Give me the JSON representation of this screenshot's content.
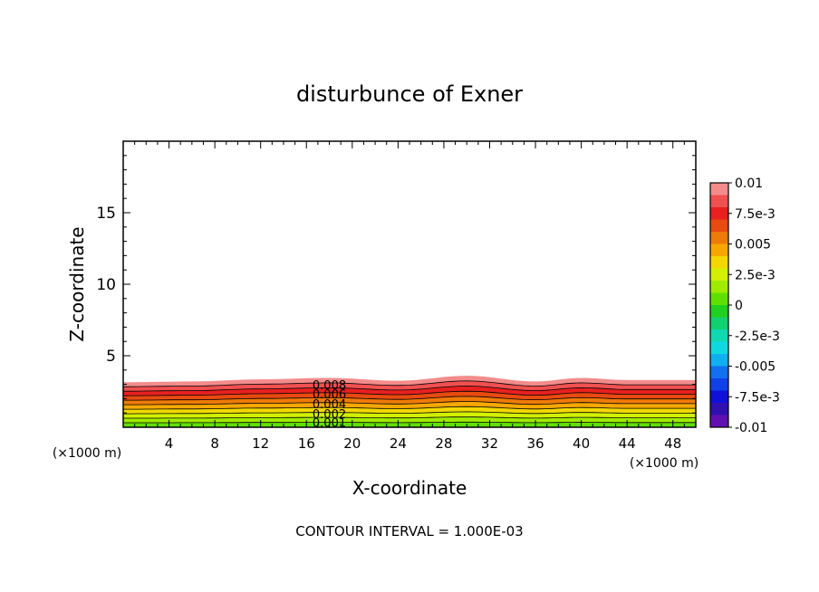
{
  "chart_data": {
    "type": "contour",
    "title": "disturbunce of Exner",
    "xlabel": "X-coordinate",
    "ylabel": "Z-coordinate",
    "x_unit": "(×1000 m)",
    "footer": "CONTOUR INTERVAL = 1.000E-03",
    "xlim": [
      0,
      50
    ],
    "ylim": [
      0,
      20
    ],
    "x_ticks": [
      4,
      8,
      12,
      16,
      20,
      24,
      28,
      32,
      36,
      40,
      44,
      48
    ],
    "y_ticks": [
      5,
      10,
      15
    ],
    "contour_interval": 0.001,
    "contour_labels": [
      "0.008",
      "0.006",
      "0.004",
      "0.002",
      "0.001"
    ],
    "surface_height_profile": {
      "x": [
        0,
        6,
        12,
        18,
        24,
        30,
        36,
        40,
        44,
        50
      ],
      "z_top": [
        3.15,
        3.2,
        3.35,
        3.45,
        3.25,
        3.6,
        3.2,
        3.45,
        3.3,
        3.3
      ]
    },
    "colorbar": {
      "tick_labels": [
        "0.01",
        "7.5e-3",
        "0.005",
        "2.5e-3",
        "0",
        "-2.5e-3",
        "-0.005",
        "-7.5e-3",
        "-0.01"
      ],
      "levels": [
        0.01,
        0.009,
        0.008,
        0.007,
        0.006,
        0.005,
        0.004,
        0.003,
        0.002,
        0.001,
        0,
        -0.001,
        -0.002,
        -0.003,
        -0.004,
        -0.005,
        -0.006,
        -0.007,
        -0.008,
        -0.009,
        -0.01
      ],
      "colors": [
        "#f48c8c",
        "#f05050",
        "#e82020",
        "#e84a10",
        "#ee7a08",
        "#f6a800",
        "#f2d800",
        "#d2f000",
        "#a0ec00",
        "#60e000",
        "#20d020",
        "#10d070",
        "#10d8b0",
        "#10d8e0",
        "#10b0f0",
        "#1070f0",
        "#1040e8",
        "#1010d8",
        "#3010b0",
        "#6010b0"
      ]
    },
    "grid": false
  }
}
